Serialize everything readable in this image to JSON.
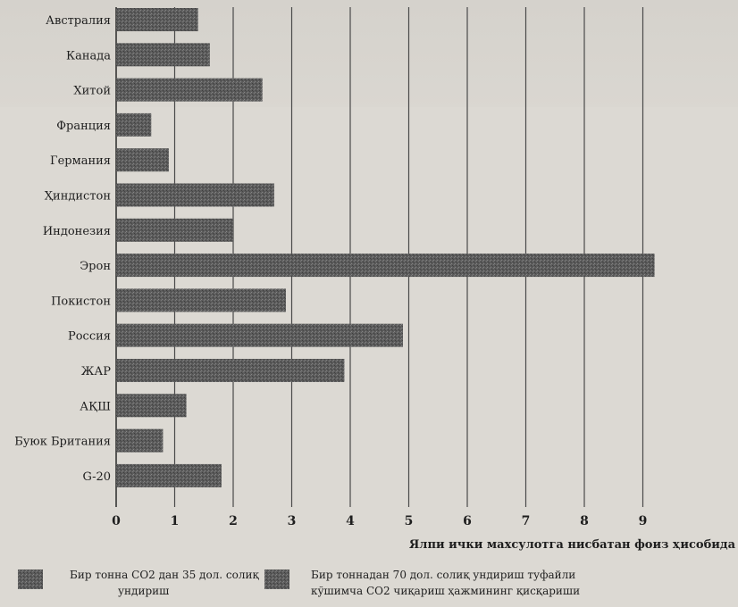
{
  "chart_data": {
    "type": "bar",
    "orientation": "horizontal",
    "categories": [
      "Австралия",
      "Канада",
      "Хитой",
      "Франция",
      "Германия",
      "Ҳиндистон",
      "Индонезия",
      "Эрон",
      "Покистон",
      "Россия",
      "ЖАР",
      "АҚШ",
      "Буюк Британия",
      "G-20"
    ],
    "series": [
      {
        "name": "Бир тонна СО2 дан 35 дол. солиқ ундириш",
        "values": [
          1.4,
          1.6,
          2.5,
          0.6,
          0.9,
          2.7,
          2.0,
          9.2,
          2.9,
          4.9,
          3.9,
          1.2,
          0.8,
          1.8
        ]
      }
    ],
    "x_ticks": [
      "0",
      "1",
      "2",
      "3",
      "4",
      "5",
      "6",
      "7",
      "8",
      "9"
    ],
    "xlim": [
      0,
      9.3
    ],
    "xlabel": "Ялпи ички махсулотга нисбатан фоиз ҳисобида",
    "grid": "vertical",
    "legend": [
      {
        "line1": "Бир тонна СО2 дан 35 дол. солиқ",
        "line2": "ундириш"
      },
      {
        "line1": "Бир тоннадан 70 дол. солиқ ундириш туфайли",
        "line2": "кўшимча СО2 чиқариш ҳажмининг қисқариши"
      }
    ],
    "legend_position": "bottom",
    "colors": {
      "bar": "#5e5e5e",
      "bar_dark": "#474747",
      "grid": "#4a4a4a"
    }
  }
}
